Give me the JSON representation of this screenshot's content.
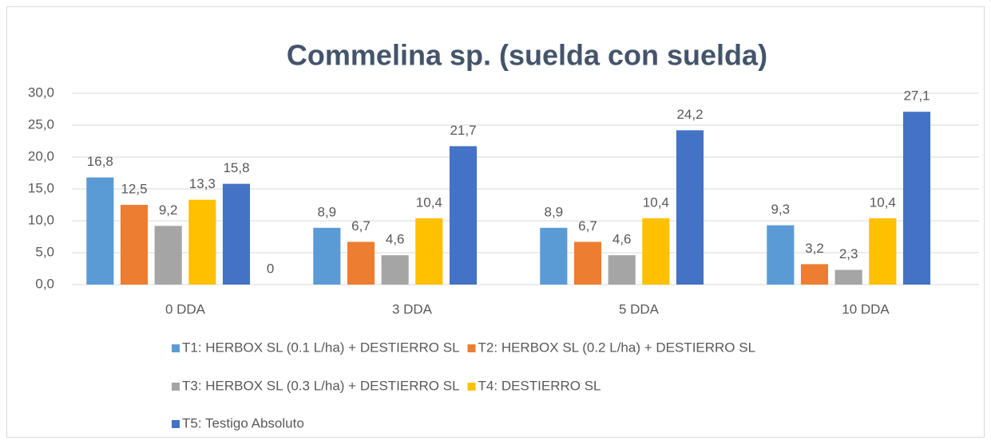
{
  "chart_data": {
    "type": "bar",
    "title": "Commelina sp. (suelda con suelda)",
    "categories": [
      "0 DDA",
      "3 DDA",
      "5 DDA",
      "10 DDA"
    ],
    "series": [
      {
        "name": "T1: HERBOX SL (0.1 L/ha) + DESTIERRO SL",
        "color": "#5b9bd5",
        "values": [
          16.8,
          8.9,
          8.9,
          9.3
        ],
        "value_labels": [
          "16,8",
          "8,9",
          "8,9",
          "9,3"
        ]
      },
      {
        "name": "T2: HERBOX SL (0.2 L/ha) + DESTIERRO SL",
        "color": "#ed7d31",
        "values": [
          12.5,
          6.7,
          6.7,
          3.2
        ],
        "value_labels": [
          "12,5",
          "6,7",
          "6,7",
          "3,2"
        ]
      },
      {
        "name": "T3: HERBOX SL (0.3 L/ha) + DESTIERRO SL",
        "color": "#a5a5a5",
        "values": [
          9.2,
          4.6,
          4.6,
          2.3
        ],
        "value_labels": [
          "9,2",
          "4,6",
          "4,6",
          "2,3"
        ]
      },
      {
        "name": "T4: DESTIERRO SL",
        "color": "#ffc000",
        "values": [
          13.3,
          10.4,
          10.4,
          10.4
        ],
        "value_labels": [
          "13,3",
          "10,4",
          "10,4",
          "10,4"
        ]
      },
      {
        "name": "T5: Testigo Absoluto",
        "color": "#4472c4",
        "values": [
          15.8,
          21.7,
          24.2,
          27.1
        ],
        "value_labels": [
          "15,8",
          "21,7",
          "24,2",
          "27,1"
        ]
      },
      {
        "values": [
          0,
          null,
          null,
          null
        ]
      }
    ],
    "ylim": [
      0,
      30
    ],
    "yticks": [
      {
        "value": 0,
        "label": "0,0"
      },
      {
        "value": 5,
        "label": "5,0"
      },
      {
        "value": 10,
        "label": "10,0"
      },
      {
        "value": 15,
        "label": "15,0"
      },
      {
        "value": 20,
        "label": "20,0"
      },
      {
        "value": 25,
        "label": "25,0"
      },
      {
        "value": 30,
        "label": "30,0"
      }
    ],
    "grid": true,
    "legend": "bottom"
  }
}
